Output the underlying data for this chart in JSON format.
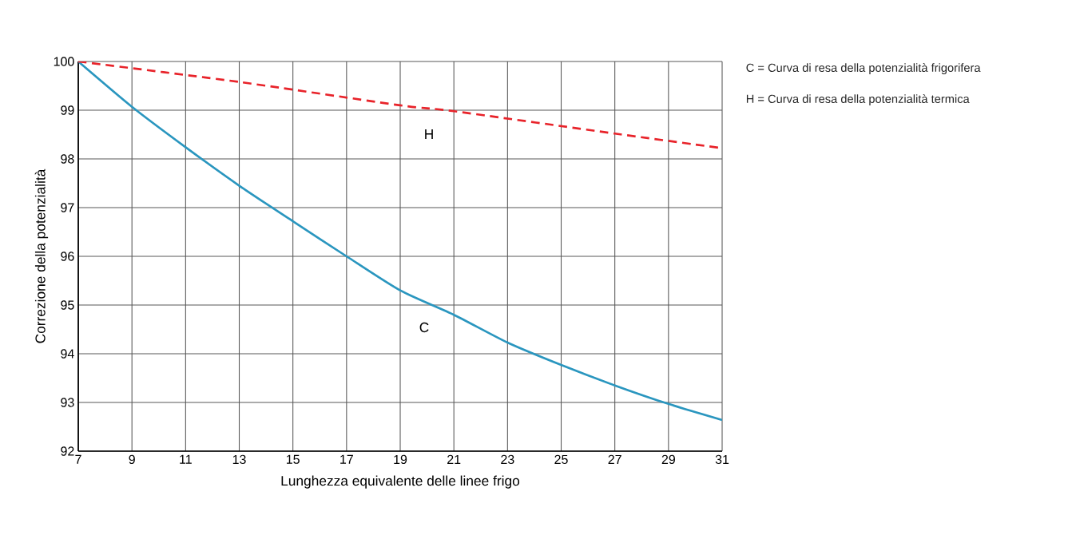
{
  "chart_data": {
    "type": "line",
    "xlabel": "Lunghezza equivalente delle linee frigo",
    "ylabel": "Correzione della potenzialità",
    "xlim": [
      7,
      31
    ],
    "xticks": [
      7,
      9,
      11,
      13,
      15,
      17,
      19,
      21,
      23,
      25,
      27,
      29,
      31
    ],
    "ylim": [
      92,
      100
    ],
    "yticks": [
      92,
      93,
      94,
      95,
      96,
      97,
      98,
      99,
      100
    ],
    "grid": true,
    "marker": "none",
    "series": [
      {
        "x": [
          7,
          9,
          11,
          13,
          15,
          17,
          19,
          21,
          23,
          25,
          27,
          29,
          31
        ],
        "values": [
          100,
          99.07,
          98.24,
          97.45,
          96.72,
          96.0,
          95.3,
          94.8,
          94.23,
          93.77,
          93.35,
          92.97,
          92.64
        ],
        "color": "#2a96bf",
        "line_style": "solid"
      },
      {
        "x": [
          7,
          13,
          19,
          21,
          27,
          31
        ],
        "values": [
          100,
          99.58,
          99.1,
          98.98,
          98.52,
          98.22
        ],
        "color": "#e8232a",
        "line_style": "dashed"
      }
    ],
    "annotations": [
      "H",
      "C",
      "C = Curva di resa della potenzialità frigorifera",
      "H = Curva di resa della potenzialità termica"
    ]
  }
}
